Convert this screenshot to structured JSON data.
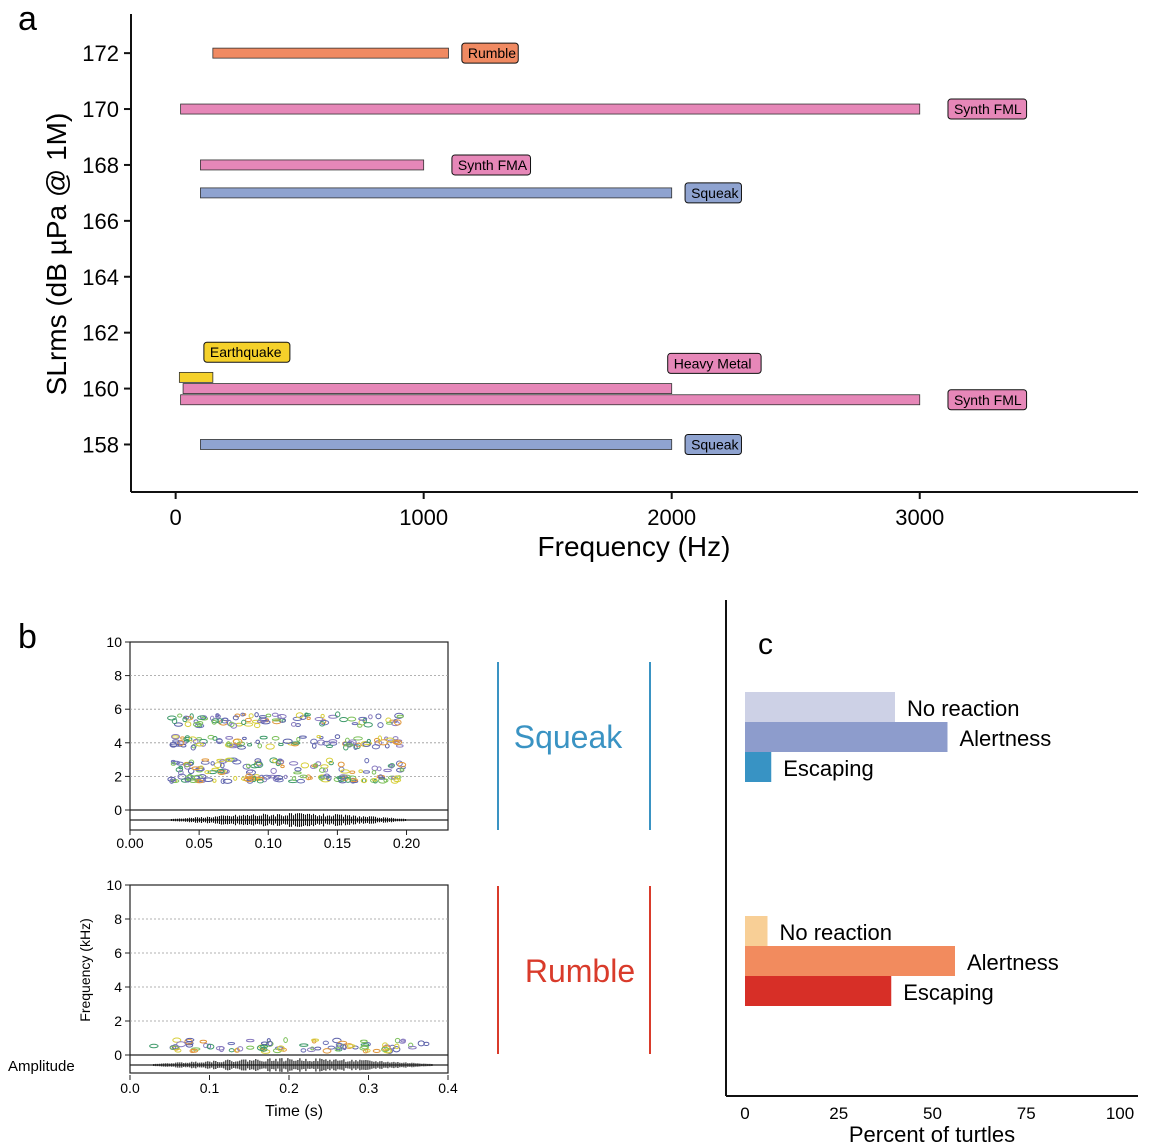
{
  "panel_labels": {
    "a": "a",
    "b": "b",
    "c": "c"
  },
  "colors": {
    "Rumble": "#f08a62",
    "Synth FML": "#e687b8",
    "Synth FMA": "#e687b8",
    "Squeak": "#8fa3d0",
    "Earthquake": "#f5d12a",
    "Heavy Metal": "#e687b8",
    "squeak_label": "#3a93c3",
    "rumble_label": "#d93b2b",
    "c_squeak": [
      "#cdd1e6",
      "#8d9ccc",
      "#3893c4"
    ],
    "c_rumble": [
      "#f8cf96",
      "#f28b5e",
      "#d72f27"
    ]
  },
  "chart_data": [
    {
      "type": "bar",
      "subtype": "horizontal-range",
      "xlabel": "Frequency (Hz)",
      "ylabel": "SLrms (dB µPa @ 1M)",
      "xlim": [
        -180,
        3880
      ],
      "ylim": [
        156.3,
        173.4
      ],
      "xticks": [
        0,
        1000,
        2000,
        3000
      ],
      "yticks": [
        158,
        160,
        162,
        164,
        166,
        168,
        170,
        172
      ],
      "bars": [
        {
          "label": "Rumble",
          "y": 172,
          "x_start": 150,
          "x_end": 1100,
          "label_x": 1170
        },
        {
          "label": "Synth FML",
          "y": 170,
          "x_start": 20,
          "x_end": 3000,
          "label_x": 3130
        },
        {
          "label": "Synth FMA",
          "y": 168,
          "x_start": 100,
          "x_end": 1000,
          "label_x": 1130
        },
        {
          "label": "Squeak",
          "y": 167,
          "x_start": 100,
          "x_end": 2000,
          "label_x": 2070
        },
        {
          "label": "Earthquake",
          "y": 160.4,
          "x_start": 15,
          "x_end": 150,
          "label_x": 130,
          "label_y": 161.3
        },
        {
          "label": "Heavy Metal",
          "y": 160,
          "x_start": 30,
          "x_end": 2000,
          "label_x": 2000,
          "label_y": 160.9
        },
        {
          "label": "Synth FML",
          "y": 159.6,
          "x_start": 20,
          "x_end": 3000,
          "label_x": 3130
        },
        {
          "label": "Squeak",
          "y": 158,
          "x_start": 100,
          "x_end": 2000,
          "label_x": 2070
        }
      ]
    },
    {
      "type": "heatmap",
      "subtype": "spectrogram",
      "title": "Squeak",
      "ylim": [
        0,
        10
      ],
      "yticks": [
        "0",
        "2",
        "4",
        "6",
        "8",
        "10"
      ],
      "xticks": [
        "0.00",
        "0.05",
        "0.10",
        "0.15",
        "0.20"
      ],
      "xlim": [
        0,
        0.23
      ],
      "signal_range_s": [
        0.03,
        0.2
      ],
      "bands_khz": [
        [
          5.0,
          5.7
        ],
        [
          3.7,
          4.4
        ],
        [
          2.2,
          3.0
        ],
        [
          1.7,
          2.0
        ]
      ]
    },
    {
      "type": "heatmap",
      "subtype": "spectrogram",
      "title": "Rumble",
      "ylim": [
        0,
        10
      ],
      "yticks": [
        "0",
        "2",
        "4",
        "6",
        "8",
        "10"
      ],
      "xticks": [
        "0.0",
        "0.1",
        "0.2",
        "0.3",
        "0.4"
      ],
      "xlim": [
        0,
        0.4
      ],
      "xlabel": "Time (s)",
      "ylabel": "Frequency (kHz)",
      "amplitude_label": "Amplitude",
      "signal_range_s": [
        0.03,
        0.38
      ],
      "bands_khz": [
        [
          0.2,
          0.9
        ]
      ]
    },
    {
      "type": "bar",
      "subtype": "horizontal",
      "xlabel": "Percent of turtles",
      "xlim": [
        0,
        100
      ],
      "xticks": [
        0,
        25,
        50,
        75,
        100
      ],
      "groups": [
        {
          "name": "Squeak",
          "categories": [
            "No reaction",
            "Alertness",
            "Escaping"
          ],
          "values": [
            40,
            54,
            7
          ]
        },
        {
          "name": "Rumble",
          "categories": [
            "No reaction",
            "Alertness",
            "Escaping"
          ],
          "values": [
            6,
            56,
            39
          ]
        }
      ]
    }
  ]
}
